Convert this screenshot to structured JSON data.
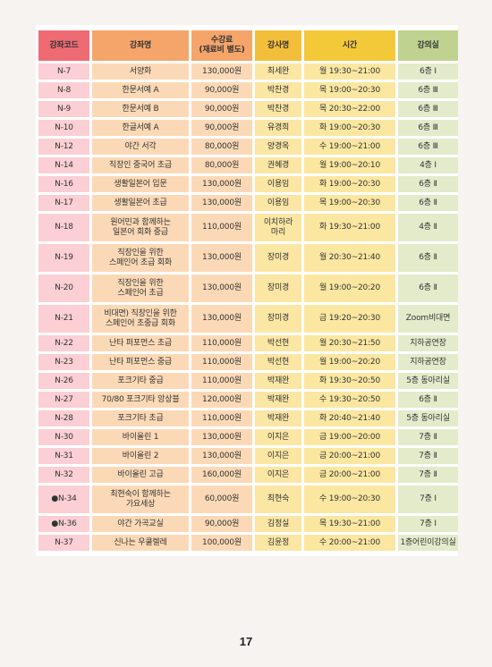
{
  "header": {
    "code": "강좌코드",
    "name": "강좌명",
    "fee_line1": "수강료",
    "fee_line2": "(재료비 별도)",
    "instructor": "강사명",
    "time": "시간",
    "room": "강의실"
  },
  "rows": [
    {
      "code": "N-7",
      "name": [
        "서양화"
      ],
      "fee": "130,000원",
      "instructor": [
        "최세완"
      ],
      "time": "월 19:30~21:00",
      "room": "6층 Ⅰ"
    },
    {
      "code": "N-8",
      "name": [
        "한문서예 A"
      ],
      "fee": "90,000원",
      "instructor": [
        "박찬경"
      ],
      "time": "목 19:00~20:30",
      "room": "6층 Ⅲ"
    },
    {
      "code": "N-9",
      "name": [
        "한문서예 B"
      ],
      "fee": "90,000원",
      "instructor": [
        "박찬경"
      ],
      "time": "목 20:30~22:00",
      "room": "6층 Ⅲ"
    },
    {
      "code": "N-10",
      "name": [
        "한글서예 A"
      ],
      "fee": "90,000원",
      "instructor": [
        "유경희"
      ],
      "time": "화 19:00~20:30",
      "room": "6층 Ⅲ"
    },
    {
      "code": "N-12",
      "name": [
        "야간 서각"
      ],
      "fee": "80,000원",
      "instructor": [
        "양경옥"
      ],
      "time": "수 19:00~21:00",
      "room": "6층 Ⅲ"
    },
    {
      "code": "N-14",
      "name": [
        "직장인 중국어 초급"
      ],
      "fee": "80,000원",
      "instructor": [
        "권혜경"
      ],
      "time": "월 19:00~20:10",
      "room": "4층 Ⅰ"
    },
    {
      "code": "N-16",
      "name": [
        "생활일본어 입문"
      ],
      "fee": "130,000원",
      "instructor": [
        "이용임"
      ],
      "time": "화 19:00~20:30",
      "room": "6층 Ⅱ"
    },
    {
      "code": "N-17",
      "name": [
        "생활일본어 초급"
      ],
      "fee": "130,000원",
      "instructor": [
        "이용임"
      ],
      "time": "목 19:00~20:30",
      "room": "6층 Ⅱ"
    },
    {
      "code": "N-18",
      "name": [
        "원어민과 함께하는",
        "일본어 회화 중급"
      ],
      "fee": "110,000원",
      "instructor": [
        "이치하라",
        "마리"
      ],
      "time": "화 19:30~21:00",
      "room": "4층 Ⅱ"
    },
    {
      "code": "N-19",
      "name": [
        "직장인을 위한",
        "스페인어 초급 회화"
      ],
      "fee": "130,000원",
      "instructor": [
        "장미경"
      ],
      "time": "월 20:30~21:40",
      "room": "6층 Ⅱ"
    },
    {
      "code": "N-20",
      "name": [
        "직장인을 위한",
        "스페인어 초급"
      ],
      "fee": "130,000원",
      "instructor": [
        "장미경"
      ],
      "time": "월 19:00~20:20",
      "room": "6층 Ⅱ"
    },
    {
      "code": "N-21",
      "name": [
        "비대면) 직장인을 위한",
        "스페인어 초중급 회화"
      ],
      "fee": "130,000원",
      "instructor": [
        "장미경"
      ],
      "time": "금 19:20~20:30",
      "room": "Zoom비대면"
    },
    {
      "code": "N-22",
      "name": [
        "난타 퍼포먼스 초급"
      ],
      "fee": "110,000원",
      "instructor": [
        "박선현"
      ],
      "time": "월 20:30~21:50",
      "room": "지하공연장"
    },
    {
      "code": "N-23",
      "name": [
        "난타 퍼포먼스 중급"
      ],
      "fee": "110,000원",
      "instructor": [
        "박선현"
      ],
      "time": "월 19:00~20:20",
      "room": "지하공연장"
    },
    {
      "code": "N-26",
      "name": [
        "포크기타 중급"
      ],
      "fee": "110,000원",
      "instructor": [
        "박재완"
      ],
      "time": "화 19:30~20:50",
      "room": "5층 동아리실"
    },
    {
      "code": "N-27",
      "name": [
        "70/80 포크기타 앙상블"
      ],
      "fee": "120,000원",
      "instructor": [
        "박재완"
      ],
      "time": "수 19:30~20:50",
      "room": "6층 Ⅱ"
    },
    {
      "code": "N-28",
      "name": [
        "포크기타 초급"
      ],
      "fee": "110,000원",
      "instructor": [
        "박재완"
      ],
      "time": "화 20:40~21:40",
      "room": "5층 동아리실"
    },
    {
      "code": "N-30",
      "name": [
        "바이올린 1"
      ],
      "fee": "130,000원",
      "instructor": [
        "이지은"
      ],
      "time": "금 19:00~20:00",
      "room": "7층 Ⅱ"
    },
    {
      "code": "N-31",
      "name": [
        "바이올린 2"
      ],
      "fee": "130,000원",
      "instructor": [
        "이지은"
      ],
      "time": "금 20:00~21:00",
      "room": "7층 Ⅱ"
    },
    {
      "code": "N-32",
      "name": [
        "바이올린 고급"
      ],
      "fee": "160,000원",
      "instructor": [
        "이지은"
      ],
      "time": "금 20:00~21:00",
      "room": "7층 Ⅱ"
    },
    {
      "code": "●N-34",
      "name": [
        "최현숙이 함께하는",
        "가요세상"
      ],
      "fee": "60,000원",
      "instructor": [
        "최현숙"
      ],
      "time": "수 19:00~20:30",
      "room": "7층 Ⅰ"
    },
    {
      "code": "●N-36",
      "name": [
        "야간 가곡교실"
      ],
      "fee": "90,000원",
      "instructor": [
        "김정실"
      ],
      "time": "목 19:30~21:00",
      "room": "7층 Ⅰ"
    },
    {
      "code": "N-37",
      "name": [
        "신나는 우쿨렐레"
      ],
      "fee": "100,000원",
      "instructor": [
        "김윤정"
      ],
      "time": "수 20:00~21:00",
      "room": "1층어린이강의실"
    }
  ],
  "page_number": "17"
}
